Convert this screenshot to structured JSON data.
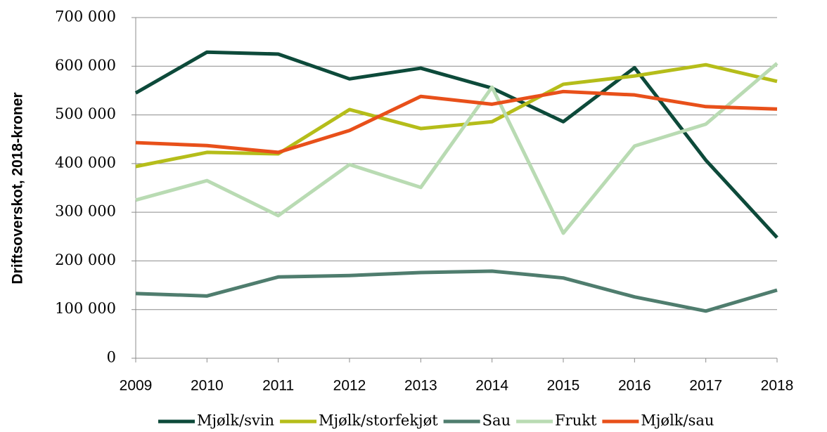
{
  "chart_data": {
    "type": "line",
    "y_label": "Driftsoverskot, 2018-kroner",
    "categories": [
      "2009",
      "2010",
      "2011",
      "2012",
      "2013",
      "2014",
      "2015",
      "2016",
      "2017",
      "2018"
    ],
    "series": [
      {
        "name": "Mjølk/svin",
        "color": "#0d4a3a",
        "values": [
          545000,
          629000,
          625000,
          574000,
          596000,
          555000,
          486000,
          597000,
          407000,
          248000
        ]
      },
      {
        "name": "Mjølk/storfekjøt",
        "color": "#b5bd1a",
        "values": [
          394000,
          423000,
          420000,
          511000,
          472000,
          486000,
          563000,
          580000,
          603000,
          569000
        ]
      },
      {
        "name": "Sau",
        "color": "#4f7d6e",
        "values": [
          133000,
          128000,
          167000,
          170000,
          176000,
          179000,
          165000,
          126000,
          97000,
          140000
        ]
      },
      {
        "name": "Frukt",
        "color": "#b9dbb3",
        "values": [
          325000,
          365000,
          293000,
          398000,
          351000,
          557000,
          257000,
          436000,
          481000,
          606000
        ]
      },
      {
        "name": "Mjølk/sau",
        "color": "#e8501a",
        "values": [
          443000,
          437000,
          423000,
          468000,
          538000,
          522000,
          548000,
          541000,
          517000,
          512000
        ]
      }
    ],
    "ylim": [
      0,
      700000
    ],
    "yticks": [
      0,
      {
        "value": 100000,
        "label": "100 000"
      },
      {
        "value": 200000,
        "label": "200 000"
      },
      {
        "value": 300000,
        "label": "300 000"
      },
      {
        "value": 400000,
        "label": "400 000"
      },
      {
        "value": 500000,
        "label": "500 000"
      },
      {
        "value": 600000,
        "label": "600 000"
      },
      {
        "value": 700000,
        "label": "700 000"
      }
    ],
    "grid": true,
    "legend": "bottom"
  }
}
